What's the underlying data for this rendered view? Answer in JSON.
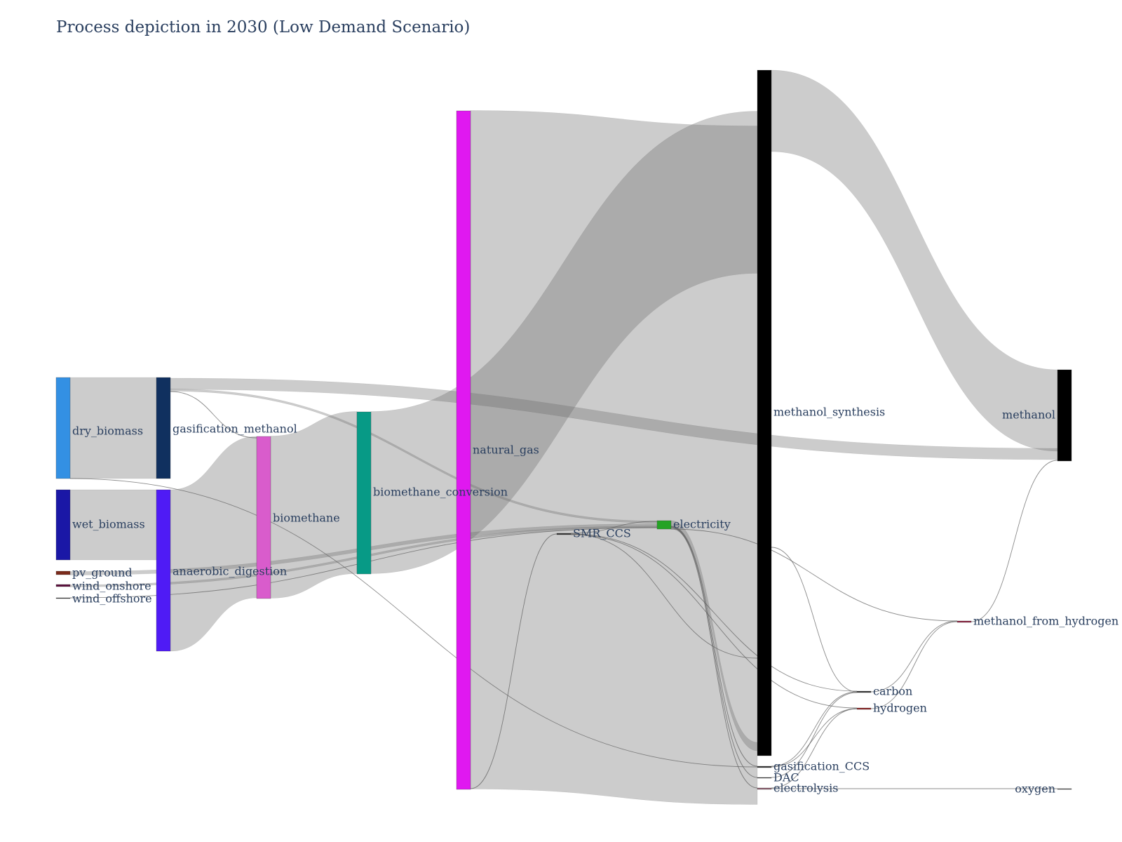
{
  "title": "Process depiction in 2030 (Low Demand Scenario)",
  "chart_data": {
    "type": "sankey",
    "nodes": [
      {
        "id": "dry_biomass",
        "label": "dry_biomass",
        "color": "#3390e3"
      },
      {
        "id": "wet_biomass",
        "label": "wet_biomass",
        "color": "#1a17a6"
      },
      {
        "id": "pv_ground",
        "label": "pv_ground",
        "color": "#7a2a1a"
      },
      {
        "id": "wind_onshore",
        "label": "wind_onshore",
        "color": "#5c0f3d"
      },
      {
        "id": "wind_offshore",
        "label": "wind_offshore",
        "color": "#2a2a2a"
      },
      {
        "id": "gasification_methanol",
        "label": "gasification_methanol",
        "color": "#10305f"
      },
      {
        "id": "anaerobic_digestion",
        "label": "anaerobic_digestion",
        "color": "#4f1bf5"
      },
      {
        "id": "biomethane",
        "label": "biomethane",
        "color": "#d95ccc"
      },
      {
        "id": "biomethane_conversion",
        "label": "biomethane_conversion",
        "color": "#079a86"
      },
      {
        "id": "natural_gas",
        "label": "natural_gas",
        "color": "#e018f0"
      },
      {
        "id": "SMR_CCS",
        "label": "SMR_CCS",
        "color": "#333333"
      },
      {
        "id": "electricity",
        "label": "electricity",
        "color": "#25a325"
      },
      {
        "id": "methanol_synthesis",
        "label": "methanol_synthesis",
        "color": "#000000"
      },
      {
        "id": "gasification_CCS",
        "label": "gasification_CCS",
        "color": "#333333"
      },
      {
        "id": "DAC",
        "label": "DAC",
        "color": "#333333"
      },
      {
        "id": "electrolysis",
        "label": "electrolysis",
        "color": "#8a5a6a"
      },
      {
        "id": "carbon",
        "label": "carbon",
        "color": "#333333"
      },
      {
        "id": "hydrogen",
        "label": "hydrogen",
        "color": "#8a1a1a"
      },
      {
        "id": "methanol_from_hydrogen",
        "label": "methanol_from_hydrogen",
        "color": "#8a1a3a"
      },
      {
        "id": "methanol",
        "label": "methanol",
        "color": "#000000"
      },
      {
        "id": "oxygen",
        "label": "oxygen",
        "color": "#333333"
      }
    ],
    "links": [
      {
        "source": "dry_biomass",
        "target": "gasification_methanol",
        "value": 140
      },
      {
        "source": "dry_biomass",
        "target": "gasification_CCS",
        "value": 0.5
      },
      {
        "source": "wet_biomass",
        "target": "anaerobic_digestion",
        "value": 97
      },
      {
        "source": "pv_ground",
        "target": "electricity",
        "value": 5
      },
      {
        "source": "wind_onshore",
        "target": "electricity",
        "value": 3
      },
      {
        "source": "wind_offshore",
        "target": "electricity",
        "value": 1
      },
      {
        "source": "gasification_methanol",
        "target": "methanol",
        "value": 14
      },
      {
        "source": "gasification_methanol",
        "target": "electricity",
        "value": 3
      },
      {
        "source": "gasification_methanol",
        "target": "biomethane",
        "value": 0.5
      },
      {
        "source": "anaerobic_digestion",
        "target": "biomethane",
        "value": 225
      },
      {
        "source": "biomethane",
        "target": "biomethane_conversion",
        "value": 225
      },
      {
        "source": "biomethane_conversion",
        "target": "methanol_synthesis",
        "value": 225
      },
      {
        "source": "natural_gas",
        "target": "methanol_synthesis",
        "value": 940
      },
      {
        "source": "natural_gas",
        "target": "SMR_CCS",
        "value": 0.5
      },
      {
        "source": "electricity",
        "target": "methanol_synthesis",
        "value": 9
      },
      {
        "source": "electricity",
        "target": "methanol_from_hydrogen",
        "value": 0.3
      },
      {
        "source": "electricity",
        "target": "gasification_CCS",
        "value": 0.3
      },
      {
        "source": "electricity",
        "target": "DAC",
        "value": 0.3
      },
      {
        "source": "electricity",
        "target": "electrolysis",
        "value": 0.3
      },
      {
        "source": "SMR_CCS",
        "target": "electricity",
        "value": 0.3
      },
      {
        "source": "SMR_CCS",
        "target": "methanol_synthesis",
        "value": 0.3
      },
      {
        "source": "SMR_CCS",
        "target": "carbon",
        "value": 0.3
      },
      {
        "source": "SMR_CCS",
        "target": "hydrogen",
        "value": 0.3
      },
      {
        "source": "methanol_synthesis",
        "target": "methanol",
        "value": 112
      },
      {
        "source": "methanol_synthesis",
        "target": "carbon",
        "value": 0.3
      },
      {
        "source": "gasification_CCS",
        "target": "carbon",
        "value": 0.3
      },
      {
        "source": "gasification_CCS",
        "target": "hydrogen",
        "value": 0.3
      },
      {
        "source": "DAC",
        "target": "carbon",
        "value": 0.3
      },
      {
        "source": "electrolysis",
        "target": "hydrogen",
        "value": 0.3
      },
      {
        "source": "electrolysis",
        "target": "oxygen",
        "value": 0.3
      },
      {
        "source": "carbon",
        "target": "methanol_from_hydrogen",
        "value": 0.3
      },
      {
        "source": "hydrogen",
        "target": "methanol_from_hydrogen",
        "value": 0.3
      },
      {
        "source": "methanol_from_hydrogen",
        "target": "methanol",
        "value": 0.3
      }
    ]
  }
}
